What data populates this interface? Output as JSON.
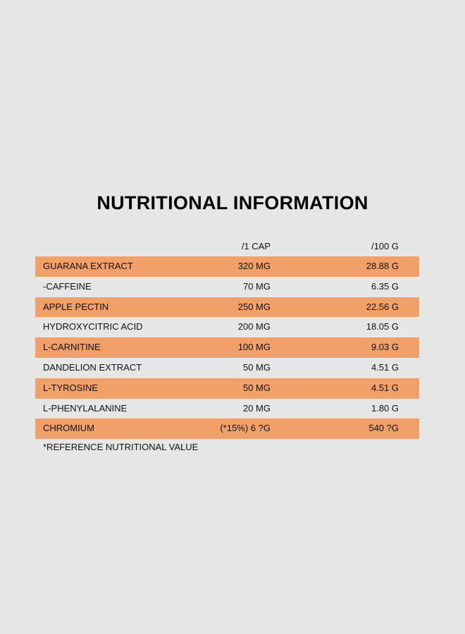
{
  "title": "NUTRITIONAL INFORMATION",
  "columns": {
    "per_cap": "/1 CAP",
    "per_100g": "/100 G"
  },
  "rows": [
    {
      "name": "GUARANA EXTRACT",
      "per_cap": "320 MG",
      "per_100g": "28.88 G"
    },
    {
      "name": "-CAFFEINE",
      "per_cap": "70 MG",
      "per_100g": "6.35 G"
    },
    {
      "name": "APPLE PECTIN",
      "per_cap": "250 MG",
      "per_100g": "22.56 G"
    },
    {
      "name": "HYDROXYCITRIC ACID",
      "per_cap": "200 MG",
      "per_100g": "18.05 G"
    },
    {
      "name": "L-CARNITINE",
      "per_cap": "100 MG",
      "per_100g": "9.03 G"
    },
    {
      "name": "DANDELION EXTRACT",
      "per_cap": "50 MG",
      "per_100g": "4.51 G"
    },
    {
      "name": "L-TYROSINE",
      "per_cap": "50 MG",
      "per_100g": "4.51 G"
    },
    {
      "name": "L-PHENYLALANINE",
      "per_cap": "20 MG",
      "per_100g": "1.80 G"
    },
    {
      "name": "CHROMIUM",
      "per_cap": "(*15%) 6 ?G",
      "per_100g": "540 ?G"
    }
  ],
  "footnote": "*REFERENCE NUTRITIONAL VALUE",
  "colors": {
    "background": "#e6e6e6",
    "row_highlight": "#f2a06a",
    "text": "#111111"
  }
}
